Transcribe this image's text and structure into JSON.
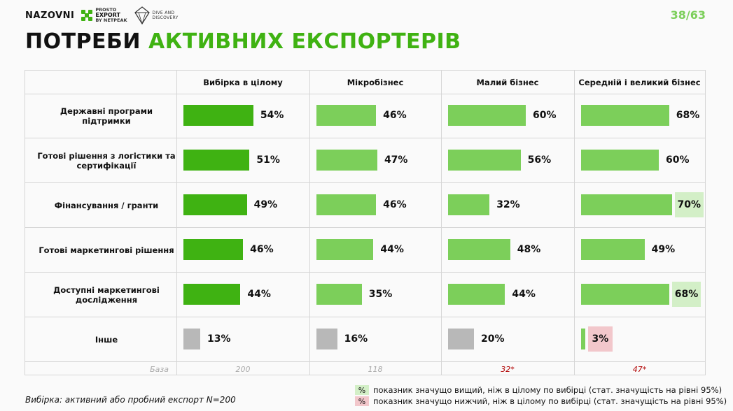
{
  "header": {
    "logo_nazovni": "NAZOVNI",
    "logo_prosto_line1": "PROSTO",
    "logo_prosto_line2": "EXPORT",
    "logo_prosto_line3": "BY NETPEAK",
    "logo_dive_line1": "DIVE AND",
    "logo_dive_line2": "DISCOVERY",
    "page_number": "38/63"
  },
  "title": {
    "part1": "ПОТРЕБИ ",
    "part2": "АКТИВНИХ ЕКСПОРТЕРІВ"
  },
  "colors": {
    "dark_green": "#3fb212",
    "light_green": "#7ccf5a",
    "grey": "#b8b8b8",
    "highlight_high": "#d3efc7",
    "highlight_low": "#f2c7cb"
  },
  "chart_data": {
    "type": "bar",
    "orientation": "horizontal",
    "categories": [
      "Державні програми підтримки",
      "Готові рішення з логістики та сертифікації",
      "Фінансування / гранти",
      "Готові маркетингові рішення",
      "Доступні маркетингові дослідження",
      "Інше"
    ],
    "series": [
      {
        "name": "Вибірка в цілому",
        "values": [
          54,
          51,
          49,
          46,
          44,
          13
        ],
        "base": "200"
      },
      {
        "name": "Мікробізнес",
        "values": [
          46,
          47,
          46,
          44,
          35,
          16
        ],
        "base": "118"
      },
      {
        "name": "Малий бізнес",
        "values": [
          60,
          56,
          32,
          48,
          44,
          20
        ],
        "base": "32*"
      },
      {
        "name": "Середній і великий бізнес",
        "values": [
          68,
          60,
          70,
          49,
          68,
          3
        ],
        "base": "47*"
      }
    ],
    "significance": [
      {
        "series": 3,
        "category": 2,
        "type": "higher"
      },
      {
        "series": 3,
        "category": 4,
        "type": "higher"
      },
      {
        "series": 3,
        "category": 5,
        "type": "lower"
      }
    ],
    "unit": "%",
    "base_label": "База"
  },
  "footnote": "Вибірка: активний або пробний експорт N=200",
  "legend": {
    "symbol": "%",
    "higher": "показник значущо вищий, ніж в цілому по вибірці (стат. значущість на рівні 95%)",
    "lower": "показник значущо нижчий, ніж в цілому по вибірці (стат. значущість на рівні 95%)"
  }
}
